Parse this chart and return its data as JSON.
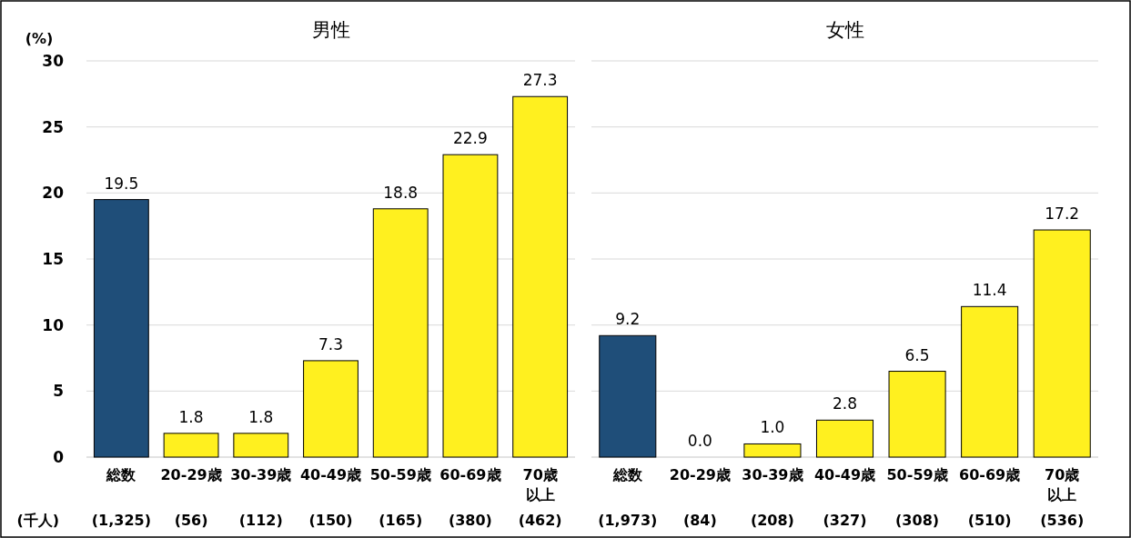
{
  "chart_data": [
    {
      "type": "bar",
      "title": "男性",
      "ylabel": "(%)",
      "categories": [
        "総数",
        "20-29歳",
        "30-39歳",
        "40-49歳",
        "50-59歳",
        "60-69歳",
        "70歳以上"
      ],
      "values": [
        19.5,
        1.8,
        1.8,
        7.3,
        18.8,
        22.9,
        27.3
      ],
      "colors": [
        "#1f4e79",
        "#fff01f",
        "#fff01f",
        "#fff01f",
        "#fff01f",
        "#fff01f",
        "#fff01f"
      ],
      "value_labels": [
        "19.5",
        "1.8",
        "1.8",
        "7.3",
        "18.8",
        "22.9",
        "27.3"
      ],
      "ylim": [
        0,
        30
      ],
      "yticks": [
        0,
        5,
        10,
        15,
        20,
        25,
        30
      ],
      "grid": "y",
      "annotations": [
        "(千人)",
        "(1,325)",
        "(56)",
        "(112)",
        "(150)",
        "(165)",
        "(380)",
        "(462)"
      ]
    },
    {
      "type": "bar",
      "title": "女性",
      "categories": [
        "総数",
        "20-29歳",
        "30-39歳",
        "40-49歳",
        "50-59歳",
        "60-69歳",
        "70歳以上"
      ],
      "values": [
        9.2,
        0.0,
        1.0,
        2.8,
        6.5,
        11.4,
        17.2
      ],
      "colors": [
        "#1f4e79",
        "#fff01f",
        "#fff01f",
        "#fff01f",
        "#fff01f",
        "#fff01f",
        "#fff01f"
      ],
      "value_labels": [
        "9.2",
        "0.0",
        "1.0",
        "2.8",
        "6.5",
        "11.4",
        "17.2"
      ],
      "ylim": [
        0,
        30
      ],
      "yticks": [
        0,
        5,
        10,
        15,
        20,
        25,
        30
      ],
      "grid": "y",
      "tick_labels": "x",
      "annotations": [
        "(1,973)",
        "(84)",
        "(208)",
        "(327)",
        "(308)",
        "(510)",
        "(536)"
      ]
    }
  ]
}
